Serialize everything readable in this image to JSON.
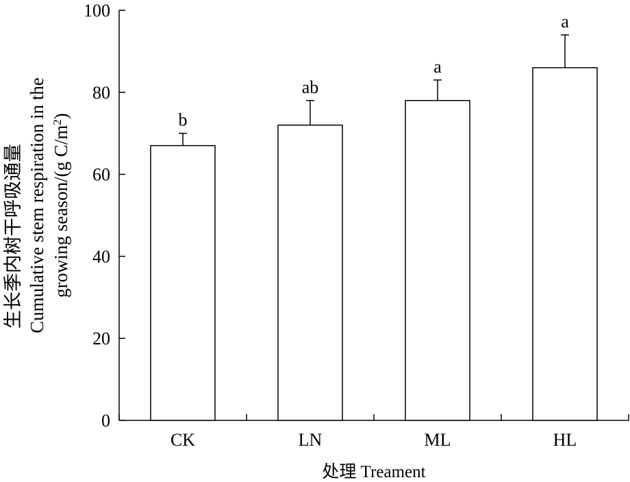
{
  "chart_data": {
    "type": "bar",
    "categories": [
      "CK",
      "LN",
      "ML",
      "HL"
    ],
    "values": [
      67,
      72,
      78,
      86
    ],
    "errors": [
      3,
      6,
      5,
      8
    ],
    "significance": [
      "b",
      "ab",
      "a",
      "a"
    ],
    "ylim": [
      0,
      100
    ],
    "yticks": [
      0,
      20,
      40,
      60,
      80,
      100
    ],
    "xlabel": "处理 Treament",
    "ylabel_lines": [
      "生长季内树干呼吸通量",
      "Cumulative stem respiration in the",
      "growing season/(g C/m",
      "2",
      ")"
    ],
    "grid": false,
    "colors": {
      "bar_fill": "#ffffff",
      "stroke": "#000000"
    }
  }
}
